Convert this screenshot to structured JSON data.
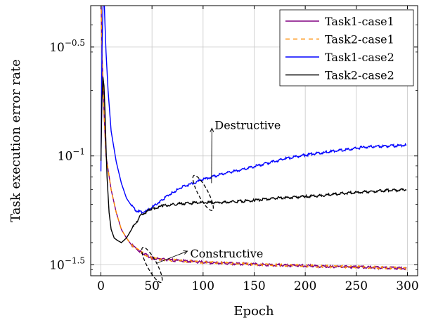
{
  "chart_data": {
    "type": "line",
    "title": "",
    "xlabel": "Epoch",
    "ylabel": "Task execution error rate",
    "xlim": [
      -10,
      310
    ],
    "ylim_log10": [
      -1.55,
      -0.31
    ],
    "yscale": "log",
    "grid": true,
    "legend_position": "top-right",
    "x_ticks": [
      0,
      50,
      100,
      150,
      200,
      250,
      300
    ],
    "y_ticks": [
      {
        "label_base": "10",
        "label_exp": "−0.5",
        "log10": -0.5
      },
      {
        "label_base": "10",
        "label_exp": "−1",
        "log10": -1.0
      },
      {
        "label_base": "10",
        "label_exp": "−1.5",
        "log10": -1.5
      }
    ],
    "series": [
      {
        "name": "Task1-case1",
        "color": "#800080",
        "dash": "none",
        "points": [
          [
            0,
            0.6
          ],
          [
            1,
            0.3
          ],
          [
            3,
            0.16
          ],
          [
            5,
            0.1
          ],
          [
            10,
            0.07
          ],
          [
            15,
            0.055
          ],
          [
            20,
            0.046
          ],
          [
            25,
            0.042
          ],
          [
            30,
            0.039
          ],
          [
            40,
            0.036
          ],
          [
            50,
            0.034
          ],
          [
            60,
            0.0335
          ],
          [
            80,
            0.033
          ],
          [
            100,
            0.0325
          ],
          [
            120,
            0.0322
          ],
          [
            150,
            0.0318
          ],
          [
            200,
            0.0313
          ],
          [
            250,
            0.0309
          ],
          [
            299,
            0.0305
          ]
        ]
      },
      {
        "name": "Task2-case1",
        "color": "#ff8c00",
        "dash": "6,5",
        "points": [
          [
            0,
            0.6
          ],
          [
            1,
            0.3
          ],
          [
            3,
            0.16
          ],
          [
            5,
            0.1
          ],
          [
            10,
            0.07
          ],
          [
            15,
            0.055
          ],
          [
            20,
            0.046
          ],
          [
            25,
            0.042
          ],
          [
            30,
            0.039
          ],
          [
            40,
            0.036
          ],
          [
            50,
            0.034
          ],
          [
            60,
            0.0335
          ],
          [
            80,
            0.033
          ],
          [
            100,
            0.0325
          ],
          [
            120,
            0.0322
          ],
          [
            150,
            0.0318
          ],
          [
            200,
            0.0313
          ],
          [
            250,
            0.0309
          ],
          [
            299,
            0.0305
          ]
        ]
      },
      {
        "name": "Task1-case2",
        "color": "#0000ff",
        "dash": "none",
        "points": [
          [
            0,
            0.085
          ],
          [
            1,
            0.3
          ],
          [
            2,
            0.48
          ],
          [
            3,
            0.55
          ],
          [
            4,
            0.4
          ],
          [
            5,
            0.3
          ],
          [
            7,
            0.2
          ],
          [
            10,
            0.13
          ],
          [
            15,
            0.094
          ],
          [
            20,
            0.075
          ],
          [
            25,
            0.064
          ],
          [
            30,
            0.059
          ],
          [
            35,
            0.056
          ],
          [
            40,
            0.055
          ],
          [
            45,
            0.056
          ],
          [
            50,
            0.058
          ],
          [
            60,
            0.063
          ],
          [
            70,
            0.068
          ],
          [
            80,
            0.072
          ],
          [
            100,
            0.078
          ],
          [
            120,
            0.083
          ],
          [
            140,
            0.087
          ],
          [
            160,
            0.092
          ],
          [
            180,
            0.097
          ],
          [
            200,
            0.101
          ],
          [
            220,
            0.104
          ],
          [
            240,
            0.107
          ],
          [
            260,
            0.11
          ],
          [
            280,
            0.111
          ],
          [
            299,
            0.112
          ]
        ]
      },
      {
        "name": "Task2-case2",
        "color": "#000000",
        "dash": "none",
        "points": [
          [
            0,
            0.095
          ],
          [
            1,
            0.18
          ],
          [
            2,
            0.23
          ],
          [
            3,
            0.21
          ],
          [
            4,
            0.16
          ],
          [
            5,
            0.11
          ],
          [
            6,
            0.08
          ],
          [
            8,
            0.055
          ],
          [
            10,
            0.046
          ],
          [
            13,
            0.042
          ],
          [
            16,
            0.041
          ],
          [
            20,
            0.04
          ],
          [
            25,
            0.042
          ],
          [
            30,
            0.046
          ],
          [
            35,
            0.05
          ],
          [
            40,
            0.054
          ],
          [
            50,
            0.057
          ],
          [
            60,
            0.059
          ],
          [
            80,
            0.0605
          ],
          [
            100,
            0.061
          ],
          [
            120,
            0.0612
          ],
          [
            150,
            0.0625
          ],
          [
            170,
            0.064
          ],
          [
            200,
            0.065
          ],
          [
            220,
            0.066
          ],
          [
            240,
            0.0675
          ],
          [
            260,
            0.0685
          ],
          [
            280,
            0.0695
          ],
          [
            299,
            0.07
          ]
        ]
      }
    ],
    "annotations": [
      {
        "text": "Destructive",
        "ellipse_center": [
          100,
          -1.17
        ],
        "label_at": [
          110,
          -0.86
        ]
      },
      {
        "text": "Constructive",
        "ellipse_center": [
          50,
          -1.5
        ],
        "label_at": [
          86,
          -1.45
        ]
      }
    ]
  }
}
